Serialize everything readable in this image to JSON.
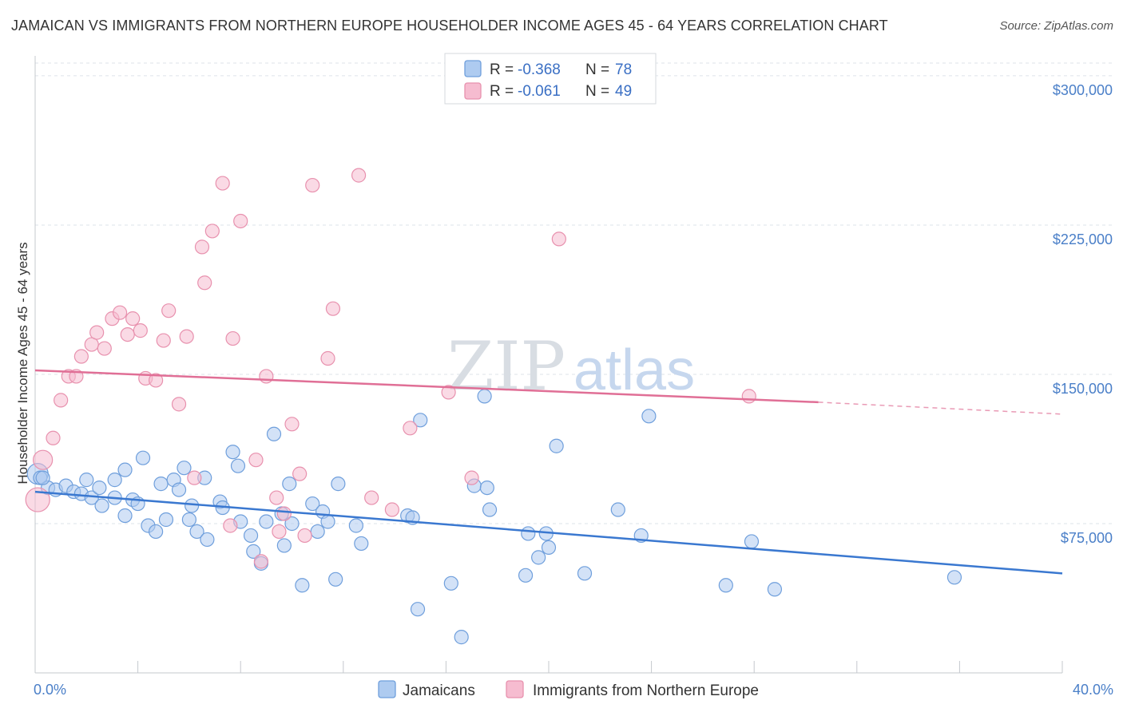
{
  "title": "JAMAICAN VS IMMIGRANTS FROM NORTHERN EUROPE HOUSEHOLDER INCOME AGES 45 - 64 YEARS CORRELATION CHART",
  "source": "Source: ZipAtlas.com",
  "watermark": {
    "zip": "ZIP",
    "atlas": "atlas"
  },
  "colors": {
    "blue_fill": "#aecbf0",
    "blue_stroke": "#6f9fdc",
    "blue_line": "#3a78d0",
    "pink_fill": "#f6bcd0",
    "pink_stroke": "#e891ae",
    "pink_line": "#e06f96",
    "axis_text": "#4a7fc8",
    "grid": "#dde3ea"
  },
  "legend": {
    "rows": [
      {
        "r_label": "R =",
        "r_value": "-0.368",
        "n_label": "N =",
        "n_value": "78"
      },
      {
        "r_label": "R =",
        "r_value": "-0.061",
        "n_label": "N =",
        "n_value": "49"
      }
    ]
  },
  "chart_data": {
    "type": "scatter",
    "title": "JAMAICAN VS IMMIGRANTS FROM NORTHERN EUROPE HOUSEHOLDER INCOME AGES 45 - 64 YEARS CORRELATION CHART",
    "xlabel": "",
    "ylabel": "Householder Income Ages 45 - 64 years",
    "xlim": [
      0,
      40
    ],
    "ylim": [
      0,
      310000
    ],
    "x_tick_labels": {
      "left": "0.0%",
      "right": "40.0%"
    },
    "y_ticks": [
      {
        "value": 75000,
        "label": "$75,000"
      },
      {
        "value": 150000,
        "label": "$150,000"
      },
      {
        "value": 225000,
        "label": "$225,000"
      },
      {
        "value": 300000,
        "label": "$300,000"
      }
    ],
    "series": [
      {
        "name": "Jamaicans",
        "r": -0.368,
        "n": 78,
        "trend": {
          "x0": 0,
          "y0": 91000,
          "x1": 40,
          "y1": 50000
        },
        "points": [
          [
            0.1,
            100000
          ],
          [
            0.2,
            98000
          ],
          [
            0.5,
            93000
          ],
          [
            0.8,
            92000
          ],
          [
            1.2,
            94000
          ],
          [
            1.5,
            91000
          ],
          [
            1.8,
            90000
          ],
          [
            2.0,
            97000
          ],
          [
            2.2,
            88000
          ],
          [
            2.5,
            93000
          ],
          [
            2.6,
            84000
          ],
          [
            3.1,
            97000
          ],
          [
            3.1,
            88000
          ],
          [
            3.5,
            79000
          ],
          [
            3.5,
            102000
          ],
          [
            3.8,
            87000
          ],
          [
            4.0,
            85000
          ],
          [
            4.2,
            108000
          ],
          [
            4.4,
            74000
          ],
          [
            4.7,
            71000
          ],
          [
            4.9,
            95000
          ],
          [
            5.1,
            77000
          ],
          [
            5.4,
            97000
          ],
          [
            5.6,
            92000
          ],
          [
            5.8,
            103000
          ],
          [
            6.0,
            77000
          ],
          [
            6.1,
            84000
          ],
          [
            6.3,
            71000
          ],
          [
            6.6,
            98000
          ],
          [
            6.7,
            67000
          ],
          [
            7.2,
            86000
          ],
          [
            7.3,
            83000
          ],
          [
            7.7,
            111000
          ],
          [
            7.9,
            104000
          ],
          [
            8.0,
            76000
          ],
          [
            8.4,
            69000
          ],
          [
            8.5,
            61000
          ],
          [
            8.8,
            55000
          ],
          [
            9.0,
            76000
          ],
          [
            9.3,
            120000
          ],
          [
            9.6,
            80000
          ],
          [
            9.7,
            64000
          ],
          [
            9.9,
            95000
          ],
          [
            10.0,
            75000
          ],
          [
            10.4,
            44000
          ],
          [
            10.8,
            85000
          ],
          [
            11.0,
            71000
          ],
          [
            11.2,
            81000
          ],
          [
            11.4,
            76000
          ],
          [
            11.7,
            47000
          ],
          [
            11.8,
            95000
          ],
          [
            12.5,
            74000
          ],
          [
            12.7,
            65000
          ],
          [
            14.5,
            79000
          ],
          [
            14.7,
            78000
          ],
          [
            14.9,
            32000
          ],
          [
            15.0,
            127000
          ],
          [
            16.2,
            45000
          ],
          [
            16.6,
            18000
          ],
          [
            17.1,
            94000
          ],
          [
            17.5,
            139000
          ],
          [
            17.6,
            93000
          ],
          [
            17.7,
            82000
          ],
          [
            19.1,
            49000
          ],
          [
            19.2,
            70000
          ],
          [
            19.6,
            58000
          ],
          [
            19.9,
            70000
          ],
          [
            20.0,
            63000
          ],
          [
            20.3,
            114000
          ],
          [
            21.4,
            50000
          ],
          [
            22.7,
            82000
          ],
          [
            23.6,
            69000
          ],
          [
            23.9,
            129000
          ],
          [
            26.9,
            44000
          ],
          [
            27.9,
            66000
          ],
          [
            28.8,
            42000
          ],
          [
            35.8,
            48000
          ],
          [
            0.3,
            98000
          ]
        ]
      },
      {
        "name": "Immigrants from Northern Europe",
        "r": -0.061,
        "n": 49,
        "trend": {
          "x0": 0,
          "y0": 152000,
          "x1": 30.5,
          "y1": 136000,
          "dash_to_x": 40,
          "dash_to_y": 130000
        },
        "points": [
          [
            0.1,
            87000
          ],
          [
            0.3,
            107000
          ],
          [
            0.7,
            118000
          ],
          [
            1.0,
            137000
          ],
          [
            1.3,
            149000
          ],
          [
            1.6,
            149000
          ],
          [
            1.8,
            159000
          ],
          [
            2.2,
            165000
          ],
          [
            2.4,
            171000
          ],
          [
            2.7,
            163000
          ],
          [
            3.0,
            178000
          ],
          [
            3.3,
            181000
          ],
          [
            3.6,
            170000
          ],
          [
            3.8,
            178000
          ],
          [
            4.1,
            172000
          ],
          [
            4.3,
            148000
          ],
          [
            4.7,
            147000
          ],
          [
            5.0,
            167000
          ],
          [
            5.2,
            182000
          ],
          [
            5.6,
            135000
          ],
          [
            5.9,
            169000
          ],
          [
            6.2,
            98000
          ],
          [
            6.5,
            214000
          ],
          [
            6.6,
            196000
          ],
          [
            6.9,
            222000
          ],
          [
            7.3,
            246000
          ],
          [
            7.6,
            74000
          ],
          [
            7.7,
            168000
          ],
          [
            8.0,
            227000
          ],
          [
            8.6,
            107000
          ],
          [
            8.8,
            56000
          ],
          [
            9.0,
            149000
          ],
          [
            9.4,
            88000
          ],
          [
            9.5,
            71000
          ],
          [
            9.7,
            80000
          ],
          [
            10.0,
            125000
          ],
          [
            10.3,
            100000
          ],
          [
            10.5,
            69000
          ],
          [
            10.8,
            245000
          ],
          [
            11.4,
            158000
          ],
          [
            11.6,
            183000
          ],
          [
            12.6,
            250000
          ],
          [
            13.1,
            88000
          ],
          [
            13.9,
            82000
          ],
          [
            14.6,
            123000
          ],
          [
            16.1,
            141000
          ],
          [
            17.0,
            98000
          ],
          [
            20.4,
            218000
          ],
          [
            27.8,
            139000
          ]
        ]
      }
    ],
    "bottom_legend": [
      "Jamaicans",
      "Immigrants from Northern Europe"
    ]
  }
}
